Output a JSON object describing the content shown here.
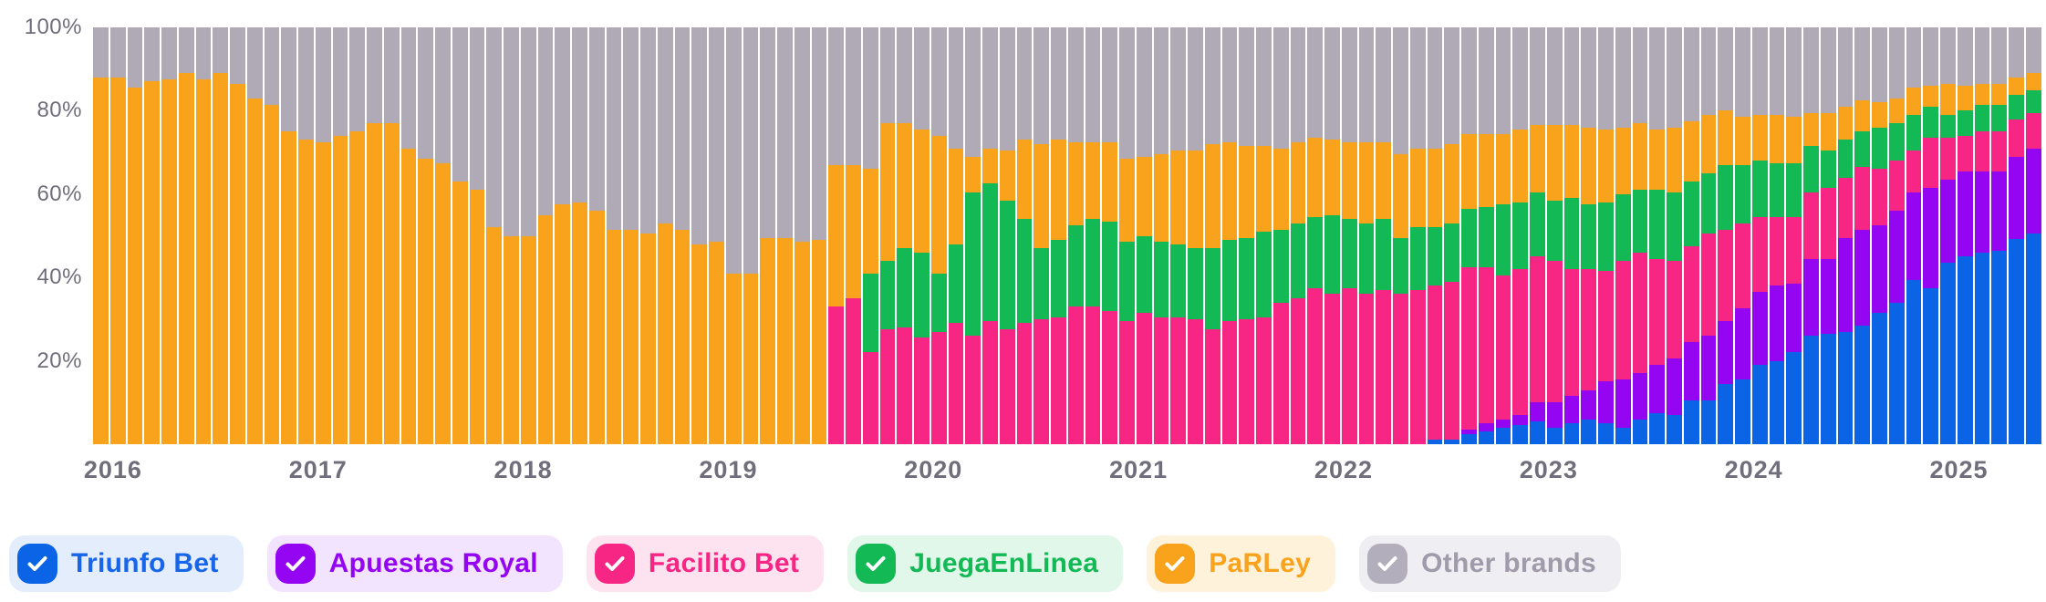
{
  "chart": {
    "y_axis_ticks": [
      {
        "label": "100%",
        "value": 100
      },
      {
        "label": "80%",
        "value": 80
      },
      {
        "label": "60%",
        "value": 60
      },
      {
        "label": "40%",
        "value": 40
      },
      {
        "label": "20%",
        "value": 20
      }
    ],
    "year_ticks": [
      {
        "label": "2016",
        "month_index": 0
      },
      {
        "label": "2017",
        "month_index": 12
      },
      {
        "label": "2018",
        "month_index": 24
      },
      {
        "label": "2019",
        "month_index": 36
      },
      {
        "label": "2020",
        "month_index": 48
      },
      {
        "label": "2021",
        "month_index": 60
      },
      {
        "label": "2022",
        "month_index": 72
      },
      {
        "label": "2023",
        "month_index": 84
      },
      {
        "label": "2024",
        "month_index": 96
      },
      {
        "label": "2025",
        "month_index": 108
      }
    ]
  },
  "chart_data": {
    "type": "bar",
    "stacked": true,
    "normalized": "100%",
    "unit": "% share",
    "interval": "month",
    "x_range": [
      "2016-01",
      "2025-06"
    ],
    "ylim": [
      0,
      100
    ],
    "grid": false,
    "legend_position": "bottom",
    "x": [
      "2016-01",
      "2016-02",
      "2016-03",
      "2016-04",
      "2016-05",
      "2016-06",
      "2016-07",
      "2016-08",
      "2016-09",
      "2016-10",
      "2016-11",
      "2016-12",
      "2017-01",
      "2017-02",
      "2017-03",
      "2017-04",
      "2017-05",
      "2017-06",
      "2017-07",
      "2017-08",
      "2017-09",
      "2017-10",
      "2017-11",
      "2017-12",
      "2018-01",
      "2018-02",
      "2018-03",
      "2018-04",
      "2018-05",
      "2018-06",
      "2018-07",
      "2018-08",
      "2018-09",
      "2018-10",
      "2018-11",
      "2018-12",
      "2019-01",
      "2019-02",
      "2019-03",
      "2019-04",
      "2019-05",
      "2019-06",
      "2019-07",
      "2019-08",
      "2019-09",
      "2019-10",
      "2019-11",
      "2019-12",
      "2020-01",
      "2020-02",
      "2020-03",
      "2020-04",
      "2020-05",
      "2020-06",
      "2020-07",
      "2020-08",
      "2020-09",
      "2020-10",
      "2020-11",
      "2020-12",
      "2021-01",
      "2021-02",
      "2021-03",
      "2021-04",
      "2021-05",
      "2021-06",
      "2021-07",
      "2021-08",
      "2021-09",
      "2021-10",
      "2021-11",
      "2021-12",
      "2022-01",
      "2022-02",
      "2022-03",
      "2022-04",
      "2022-05",
      "2022-06",
      "2022-07",
      "2022-08",
      "2022-09",
      "2022-10",
      "2022-11",
      "2022-12",
      "2023-01",
      "2023-02",
      "2023-03",
      "2023-04",
      "2023-05",
      "2023-06",
      "2023-07",
      "2023-08",
      "2023-09",
      "2023-10",
      "2023-11",
      "2023-12",
      "2024-01",
      "2024-02",
      "2024-03",
      "2024-04",
      "2024-05",
      "2024-06",
      "2024-07",
      "2024-08",
      "2024-09",
      "2024-10",
      "2024-11",
      "2024-12",
      "2025-01",
      "2025-02",
      "2025-03",
      "2025-04",
      "2025-05",
      "2025-06"
    ],
    "series": [
      {
        "name": "Triunfo Bet",
        "color": "#0B63E6",
        "values": [
          0,
          0,
          0,
          0,
          0,
          0,
          0,
          0,
          0,
          0,
          0,
          0,
          0,
          0,
          0,
          0,
          0,
          0,
          0,
          0,
          0,
          0,
          0,
          0,
          0,
          0,
          0,
          0,
          0,
          0,
          0,
          0,
          0,
          0,
          0,
          0,
          0,
          0,
          0,
          0,
          0,
          0,
          0,
          0,
          0,
          0,
          0,
          0,
          0,
          0,
          0,
          0,
          0,
          0,
          0,
          0,
          0,
          0,
          0,
          0,
          0,
          0,
          0,
          0,
          0,
          0,
          0,
          0,
          0,
          0,
          0,
          0,
          0,
          0,
          0,
          0,
          0,
          0,
          1,
          1,
          2.5,
          3,
          4,
          4.5,
          5.5,
          4,
          5,
          6,
          5,
          4,
          6,
          7.5,
          7,
          10.5,
          10.5,
          14.5,
          15.5,
          19,
          20,
          22,
          26,
          26.5,
          27,
          28.5,
          31.5,
          34,
          39.5,
          37.5,
          43.5,
          45,
          46,
          46.5,
          49,
          50.5
        ]
      },
      {
        "name": "Apuestas Royal",
        "color": "#9406F2",
        "values": [
          0,
          0,
          0,
          0,
          0,
          0,
          0,
          0,
          0,
          0,
          0,
          0,
          0,
          0,
          0,
          0,
          0,
          0,
          0,
          0,
          0,
          0,
          0,
          0,
          0,
          0,
          0,
          0,
          0,
          0,
          0,
          0,
          0,
          0,
          0,
          0,
          0,
          0,
          0,
          0,
          0,
          0,
          0,
          0,
          0,
          0,
          0,
          0,
          0,
          0,
          0,
          0,
          0,
          0,
          0,
          0,
          0,
          0,
          0,
          0,
          0,
          0,
          0,
          0,
          0,
          0,
          0,
          0,
          0,
          0,
          0,
          0,
          0,
          0,
          0,
          0,
          0,
          0,
          0,
          0,
          1,
          2,
          2,
          2.5,
          4.5,
          6,
          6.5,
          7,
          10,
          11.5,
          11,
          11.5,
          13.5,
          14,
          15.5,
          15,
          17,
          17.5,
          18,
          16.5,
          18.5,
          18,
          22.5,
          23,
          21,
          22,
          21,
          24,
          20,
          20.5,
          19.5,
          19,
          19.5,
          20.5
        ]
      },
      {
        "name": "Facilito Bet",
        "color": "#F72583",
        "values": [
          0,
          0,
          0,
          0,
          0,
          0,
          0,
          0,
          0,
          0,
          0,
          0,
          0,
          0,
          0,
          0,
          0,
          0,
          0,
          0,
          0,
          0,
          0,
          0,
          0,
          0,
          0,
          0,
          0,
          0,
          0,
          0,
          0,
          0,
          0,
          0,
          0,
          0,
          0,
          0,
          0,
          0,
          0,
          33,
          35,
          22,
          27.5,
          28,
          25.5,
          27,
          29,
          26,
          29.5,
          27.5,
          29,
          30,
          30.5,
          33,
          33,
          32,
          29.5,
          31.5,
          30.5,
          30.5,
          30,
          27.5,
          29.5,
          30,
          30.5,
          34,
          35,
          37.5,
          36,
          37.5,
          36,
          37,
          36,
          37,
          37,
          38,
          39,
          37.5,
          34.5,
          35,
          35,
          34,
          30.5,
          29,
          26.5,
          28.5,
          29,
          25.5,
          23.5,
          23,
          24.5,
          22,
          20.5,
          18,
          16.5,
          16,
          16,
          17,
          14.5,
          15,
          13.5,
          12,
          10,
          12,
          10,
          8.5,
          9.5,
          9.5,
          9,
          8.5
        ]
      },
      {
        "name": "JuegaEnLinea",
        "color": "#12B954",
        "values": [
          0,
          0,
          0,
          0,
          0,
          0,
          0,
          0,
          0,
          0,
          0,
          0,
          0,
          0,
          0,
          0,
          0,
          0,
          0,
          0,
          0,
          0,
          0,
          0,
          0,
          0,
          0,
          0,
          0,
          0,
          0,
          0,
          0,
          0,
          0,
          0,
          0,
          0,
          0,
          0,
          0,
          0,
          0,
          0,
          0,
          19,
          16.5,
          19,
          20.5,
          14,
          19,
          34.5,
          33,
          31,
          25,
          17,
          18.5,
          19.5,
          21,
          21.5,
          19,
          18.5,
          18,
          17.5,
          17,
          19.5,
          19.5,
          19.5,
          20.5,
          17.5,
          18,
          17,
          19,
          16.5,
          17,
          17,
          13.5,
          15,
          14,
          14,
          14,
          14.5,
          17,
          16,
          15.5,
          14.5,
          17,
          15.5,
          16.5,
          16,
          15,
          16.5,
          16.5,
          15.5,
          14.5,
          15.5,
          14,
          13.5,
          13,
          13,
          11,
          9,
          9,
          8.5,
          10,
          9,
          8.5,
          7.5,
          5.5,
          6,
          6.5,
          6.5,
          6,
          5.5
        ]
      },
      {
        "name": "PaRLey",
        "color": "#F9A21B",
        "values": [
          88,
          88,
          85.5,
          87,
          87.5,
          89,
          87.5,
          89,
          86.5,
          83,
          81.5,
          75,
          73,
          72.5,
          74,
          75,
          77,
          77,
          71,
          68.5,
          67.5,
          63,
          61,
          52,
          50,
          50,
          55,
          57.5,
          58,
          56,
          51.5,
          51.5,
          50.5,
          53,
          51.5,
          48,
          48.5,
          41,
          41,
          49.5,
          49.5,
          48.5,
          49,
          34,
          32,
          25,
          33,
          30,
          29.5,
          33,
          23,
          8.5,
          8.5,
          12,
          19,
          25,
          24,
          20,
          18.5,
          19,
          20,
          19,
          21,
          22.5,
          23.5,
          25,
          23.5,
          22,
          20.5,
          19.5,
          19.5,
          19,
          18,
          18.5,
          19.5,
          18.5,
          20,
          19,
          19,
          19,
          18,
          17.5,
          17,
          17.5,
          16,
          18,
          17.5,
          18.5,
          17.5,
          16,
          16,
          14.5,
          15.5,
          14.5,
          14,
          13,
          11.5,
          11,
          11.5,
          11,
          8,
          9,
          8,
          7.5,
          6,
          6,
          6.5,
          5,
          7.5,
          6,
          5,
          5,
          4,
          4
        ]
      },
      {
        "name": "Other brands",
        "color": "#AFAAB6",
        "values": [
          12,
          12,
          14.5,
          13,
          12.5,
          11,
          12.5,
          11,
          13.5,
          17,
          18.5,
          25,
          27,
          27.5,
          26,
          25,
          23,
          23,
          29,
          31.5,
          32.5,
          37,
          39,
          48,
          50,
          50,
          45,
          42.5,
          42,
          44,
          48.5,
          48.5,
          49.5,
          47,
          48.5,
          52,
          51.5,
          59,
          59,
          50.5,
          50.5,
          51.5,
          51,
          33,
          33,
          34,
          23,
          23,
          24.5,
          26,
          29,
          31,
          29,
          29.5,
          27,
          28,
          27,
          27.5,
          27.5,
          27.5,
          31.5,
          31,
          30.5,
          29.5,
          29.5,
          28,
          27.5,
          28.5,
          28.5,
          29,
          27.5,
          26.5,
          27,
          27.5,
          27.5,
          27.5,
          30.5,
          29,
          29,
          28,
          25.5,
          25.5,
          25.5,
          24.5,
          23.5,
          23.5,
          23.5,
          24,
          24.5,
          24,
          23,
          24.5,
          24,
          22.5,
          21,
          20,
          21.5,
          21,
          21,
          21.5,
          20.5,
          20.5,
          19,
          17.5,
          18,
          17,
          14.5,
          14,
          13.5,
          14,
          13.5,
          13.5,
          12,
          11
        ]
      }
    ]
  },
  "legend": {
    "items": [
      {
        "label": "Triunfo Bet",
        "checked": true,
        "color": "#0B63E6",
        "bg": "#E3EDFC",
        "text_color": "#1765E8"
      },
      {
        "label": "Apuestas Royal",
        "checked": true,
        "color": "#9406F2",
        "bg": "#F2E3FE",
        "text_color": "#9406F2"
      },
      {
        "label": "Facilito Bet",
        "checked": true,
        "color": "#F72583",
        "bg": "#FDE3EF",
        "text_color": "#F72583"
      },
      {
        "label": "JuegaEnLinea",
        "checked": true,
        "color": "#12B954",
        "bg": "#E1F7E9",
        "text_color": "#12B954"
      },
      {
        "label": "PaRLey",
        "checked": true,
        "color": "#F9A21B",
        "bg": "#FEF2DB",
        "text_color": "#F9A21B"
      },
      {
        "label": "Other brands",
        "checked": true,
        "color": "#B3AEBC",
        "bg": "#EFEEF2",
        "text_color": "#A09BAA"
      }
    ]
  }
}
